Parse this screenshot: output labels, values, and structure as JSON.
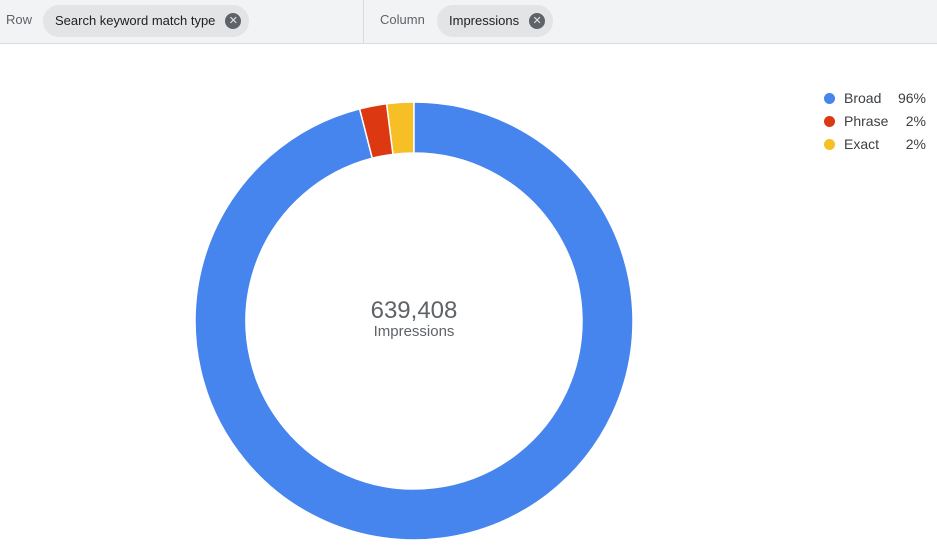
{
  "toolbar": {
    "row_label": "Row",
    "row_chip": "Search keyword match type",
    "column_label": "Column",
    "column_chip": "Impressions"
  },
  "chart_data": {
    "type": "pie",
    "center_value": "639,408",
    "center_label": "Impressions",
    "categories": [
      "Broad",
      "Phrase",
      "Exact"
    ],
    "values": [
      96,
      2,
      2
    ],
    "value_labels": [
      "96%",
      "2%",
      "2%"
    ],
    "colors": [
      "#4684ee",
      "#dc3912",
      "#f6bf26"
    ]
  }
}
